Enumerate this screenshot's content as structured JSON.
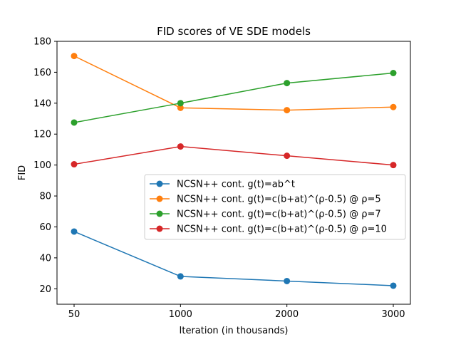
{
  "chart_data": {
    "type": "line",
    "title": "FID scores of VE SDE models",
    "xlabel": "Iteration (in thousands)",
    "ylabel": "FID",
    "categories": [
      "50",
      "1000",
      "2000",
      "3000"
    ],
    "ylim": [
      10,
      180
    ],
    "yticks": [
      20,
      40,
      60,
      80,
      100,
      120,
      140,
      160,
      180
    ],
    "grid": false,
    "legend_position": "center-right",
    "series": [
      {
        "name": "NCSN++ cont. g(t)=ab^t",
        "color": "#1f77b4",
        "values": [
          57,
          28,
          25,
          22
        ]
      },
      {
        "name": "NCSN++ cont. g(t)=c(b+at)^(ρ-0.5) @ ρ=5",
        "color": "#ff7f0e",
        "values": [
          170.5,
          137,
          135.5,
          137.5
        ]
      },
      {
        "name": "NCSN++ cont. g(t)=c(b+at)^(ρ-0.5) @ ρ=7",
        "color": "#2ca02c",
        "values": [
          127.5,
          140,
          153,
          159.5
        ]
      },
      {
        "name": "NCSN++ cont. g(t)=c(b+at)^(ρ-0.5) @ ρ=10",
        "color": "#d62728",
        "values": [
          100.5,
          112,
          106,
          100
        ]
      }
    ]
  }
}
